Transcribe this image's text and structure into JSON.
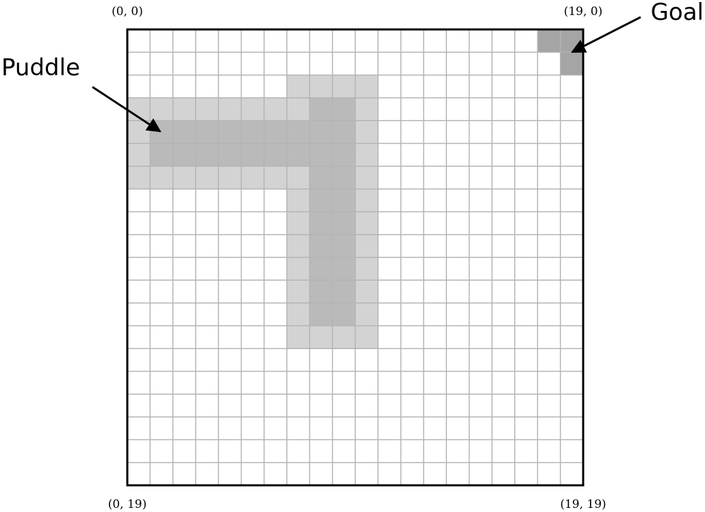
{
  "grid": {
    "columns": 20,
    "rows": 20
  },
  "colors": {
    "background": "#ffffff",
    "grid_line": "#b4b4b4",
    "border": "#000000",
    "puddle_light": "#d3d3d3",
    "puddle_dark": "#bababa",
    "goal": "#a5a5a5",
    "arrow": "#000000"
  },
  "corner_labels": {
    "top_left": "(0, 0)",
    "top_right": "(19, 0)",
    "bottom_left": "(0, 19)",
    "bottom_right": "(19, 19)"
  },
  "callouts": {
    "puddle": "Puddle",
    "goal": "Goal"
  },
  "puddle_light_cells": [
    [
      7,
      2
    ],
    [
      8,
      2
    ],
    [
      9,
      2
    ],
    [
      10,
      2
    ],
    [
      0,
      3
    ],
    [
      1,
      3
    ],
    [
      2,
      3
    ],
    [
      3,
      3
    ],
    [
      4,
      3
    ],
    [
      5,
      3
    ],
    [
      6,
      3
    ],
    [
      7,
      3
    ],
    [
      10,
      3
    ],
    [
      0,
      4
    ],
    [
      10,
      4
    ],
    [
      0,
      5
    ],
    [
      10,
      5
    ],
    [
      0,
      6
    ],
    [
      1,
      6
    ],
    [
      2,
      6
    ],
    [
      3,
      6
    ],
    [
      4,
      6
    ],
    [
      5,
      6
    ],
    [
      6,
      6
    ],
    [
      7,
      6
    ],
    [
      10,
      6
    ],
    [
      7,
      7
    ],
    [
      10,
      7
    ],
    [
      7,
      8
    ],
    [
      10,
      8
    ],
    [
      7,
      9
    ],
    [
      10,
      9
    ],
    [
      7,
      10
    ],
    [
      10,
      10
    ],
    [
      7,
      11
    ],
    [
      10,
      11
    ],
    [
      7,
      12
    ],
    [
      10,
      12
    ],
    [
      7,
      13
    ],
    [
      8,
      13
    ],
    [
      9,
      13
    ],
    [
      10,
      13
    ]
  ],
  "puddle_dark_cells": [
    [
      8,
      3
    ],
    [
      9,
      3
    ],
    [
      1,
      4
    ],
    [
      2,
      4
    ],
    [
      3,
      4
    ],
    [
      4,
      4
    ],
    [
      5,
      4
    ],
    [
      6,
      4
    ],
    [
      7,
      4
    ],
    [
      8,
      4
    ],
    [
      9,
      4
    ],
    [
      1,
      5
    ],
    [
      2,
      5
    ],
    [
      3,
      5
    ],
    [
      4,
      5
    ],
    [
      5,
      5
    ],
    [
      6,
      5
    ],
    [
      7,
      5
    ],
    [
      8,
      5
    ],
    [
      9,
      5
    ],
    [
      8,
      6
    ],
    [
      9,
      6
    ],
    [
      8,
      7
    ],
    [
      9,
      7
    ],
    [
      8,
      8
    ],
    [
      9,
      8
    ],
    [
      8,
      9
    ],
    [
      9,
      9
    ],
    [
      8,
      10
    ],
    [
      9,
      10
    ],
    [
      8,
      11
    ],
    [
      9,
      11
    ],
    [
      8,
      12
    ],
    [
      9,
      12
    ]
  ],
  "goal_cells": [
    [
      18,
      0
    ],
    [
      19,
      0
    ],
    [
      19,
      1
    ]
  ]
}
